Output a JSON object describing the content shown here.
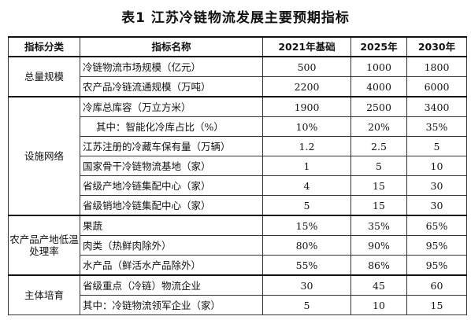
{
  "title": "表1  江苏冷链物流发展主要预期指标",
  "headers": {
    "category": "指标分类",
    "name": "指标名称",
    "y2021": "2021年基础",
    "y2025": "2025年",
    "y2030": "2030年"
  },
  "groups": {
    "scale": {
      "label": "总量规模",
      "rows": [
        {
          "name": "冷链物流市场规模（亿元）",
          "y2021": "500",
          "y2025": "1000",
          "y2030": "1800"
        },
        {
          "name": "农产品冷链流通规模（万吨）",
          "y2021": "2200",
          "y2025": "4000",
          "y2030": "6000"
        }
      ]
    },
    "facility": {
      "label": "设施网络",
      "rows": [
        {
          "name": "冷库总库容（万立方米）",
          "y2021": "1900",
          "y2025": "2500",
          "y2030": "3400"
        },
        {
          "name": "其中：智能化冷库占比（%）",
          "y2021": "10%",
          "y2025": "20%",
          "y2030": "35%"
        },
        {
          "name": "江苏注册的冷藏车保有量（万辆）",
          "y2021": "1.2",
          "y2025": "2.5",
          "y2030": "5"
        },
        {
          "name": "国家骨干冷链物流基地（家）",
          "y2021": "1",
          "y2025": "5",
          "y2030": "10"
        },
        {
          "name": "省级产地冷链集配中心（家）",
          "y2021": "4",
          "y2025": "15",
          "y2030": "30"
        },
        {
          "name": "省级销地冷链集配中心（家）",
          "y2021": "5",
          "y2025": "15",
          "y2030": "30"
        }
      ]
    },
    "processing": {
      "label": "农产品产地低温处理率",
      "rows": [
        {
          "name": "果蔬",
          "y2021": "15%",
          "y2025": "35%",
          "y2030": "65%"
        },
        {
          "name": "肉类（热鲜肉除外）",
          "y2021": "80%",
          "y2025": "90%",
          "y2030": "95%"
        },
        {
          "name": "水产品（鲜活水产品除外）",
          "y2021": "55%",
          "y2025": "86%",
          "y2030": "95%"
        }
      ]
    },
    "cultivation": {
      "label": "主体培育",
      "rows": [
        {
          "name": "省级重点（冷链）物流企业",
          "y2021": "30",
          "y2025": "45",
          "y2030": "60"
        },
        {
          "name": "其中：冷链物流领军企业（家）",
          "y2021": "5",
          "y2025": "10",
          "y2030": "15"
        }
      ]
    }
  }
}
